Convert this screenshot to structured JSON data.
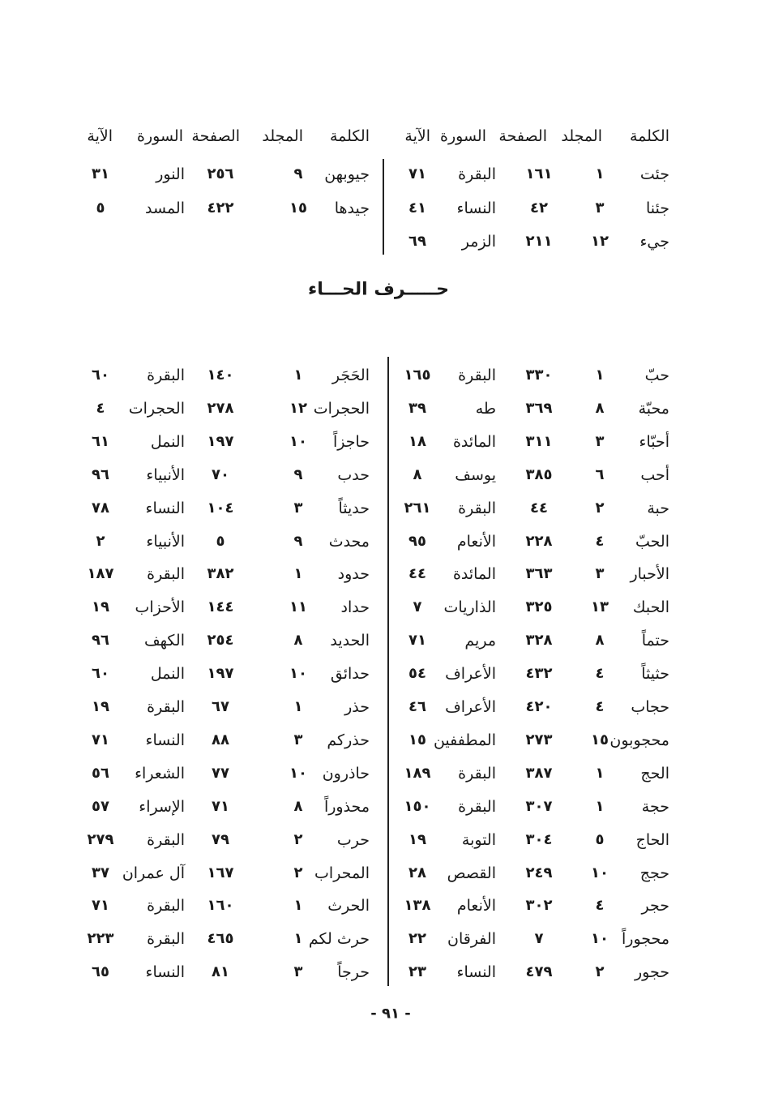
{
  "headers": {
    "right": [
      "الكلمة",
      "المجلد",
      "الصفحة",
      "السورة",
      "الآية"
    ],
    "left": [
      "الكلمة",
      "المجلد",
      "الصفحة",
      "السورة",
      "الآية"
    ]
  },
  "top_section": {
    "right_rows": [
      [
        "جئت",
        "١",
        "١٦١",
        "البقرة",
        "٧١"
      ],
      [
        "جئنا",
        "٣",
        "٤٢",
        "النساء",
        "٤١"
      ],
      [
        "جيء",
        "١٢",
        "٢١١",
        "الزمر",
        "٦٩"
      ]
    ],
    "left_rows": [
      [
        "جيوبهن",
        "٩",
        "٢٥٦",
        "النور",
        "٣١"
      ],
      [
        "جيدها",
        "١٥",
        "٤٢٢",
        "المسد",
        "٥"
      ]
    ]
  },
  "section_title": "حـــــرف الحـــاء",
  "main_section": {
    "right_rows": [
      [
        "حبّ",
        "١",
        "٣٣٠",
        "البقرة",
        "١٦٥"
      ],
      [
        "محبّة",
        "٨",
        "٣٦٩",
        "طه",
        "٣٩"
      ],
      [
        "أحبّاء",
        "٣",
        "٣١١",
        "المائدة",
        "١٨"
      ],
      [
        "أحب",
        "٦",
        "٣٨٥",
        "يوسف",
        "٨"
      ],
      [
        "حبة",
        "٢",
        "٤٤",
        "البقرة",
        "٢٦١"
      ],
      [
        "الحبّ",
        "٤",
        "٢٢٨",
        "الأنعام",
        "٩٥"
      ],
      [
        "الأحبار",
        "٣",
        "٣٦٣",
        "المائدة",
        "٤٤"
      ],
      [
        "الحبك",
        "١٣",
        "٣٢٥",
        "الذاريات",
        "٧"
      ],
      [
        "حتماً",
        "٨",
        "٣٢٨",
        "مريم",
        "٧١"
      ],
      [
        "حثيثاً",
        "٤",
        "٤٣٢",
        "الأعراف",
        "٥٤"
      ],
      [
        "حجاب",
        "٤",
        "٤٢٠",
        "الأعراف",
        "٤٦"
      ],
      [
        "محجوبون",
        "١٥",
        "٢٧٣",
        "المطففين",
        "١٥"
      ],
      [
        "الحج",
        "١",
        "٣٨٧",
        "البقرة",
        "١٨٩"
      ],
      [
        "حجة",
        "١",
        "٣٠٧",
        "البقرة",
        "١٥٠"
      ],
      [
        "الحاج",
        "٥",
        "٣٠٤",
        "التوبة",
        "١٩"
      ],
      [
        "حجج",
        "١٠",
        "٢٤٩",
        "القصص",
        "٢٨"
      ],
      [
        "حجر",
        "٤",
        "٣٠٢",
        "الأنعام",
        "١٣٨"
      ],
      [
        "محجوراً",
        "١٠",
        "٧",
        "الفرقان",
        "٢٢"
      ],
      [
        "حجور",
        "٢",
        "٤٧٩",
        "النساء",
        "٢٣"
      ]
    ],
    "left_rows": [
      [
        "الحَجَر",
        "١",
        "١٤٠",
        "البقرة",
        "٦٠"
      ],
      [
        "الحجرات",
        "١٢",
        "٢٧٨",
        "الحجرات",
        "٤"
      ],
      [
        "حاجزاً",
        "١٠",
        "١٩٧",
        "النمل",
        "٦١"
      ],
      [
        "حدب",
        "٩",
        "٧٠",
        "الأنبياء",
        "٩٦"
      ],
      [
        "حديثاً",
        "٣",
        "١٠٤",
        "النساء",
        "٧٨"
      ],
      [
        "محدث",
        "٩",
        "٥",
        "الأنبياء",
        "٢"
      ],
      [
        "حدود",
        "١",
        "٣٨٢",
        "البقرة",
        "١٨٧"
      ],
      [
        "حداد",
        "١١",
        "١٤٤",
        "الأحزاب",
        "١٩"
      ],
      [
        "الحديد",
        "٨",
        "٢٥٤",
        "الكهف",
        "٩٦"
      ],
      [
        "حدائق",
        "١٠",
        "١٩٧",
        "النمل",
        "٦٠"
      ],
      [
        "حذر",
        "١",
        "٦٧",
        "البقرة",
        "١٩"
      ],
      [
        "حذركم",
        "٣",
        "٨٨",
        "النساء",
        "٧١"
      ],
      [
        "حاذرون",
        "١٠",
        "٧٧",
        "الشعراء",
        "٥٦"
      ],
      [
        "محذوراً",
        "٨",
        "٧١",
        "الإسراء",
        "٥٧"
      ],
      [
        "حرب",
        "٢",
        "٧٩",
        "البقرة",
        "٢٧٩"
      ],
      [
        "المحراب",
        "٢",
        "١٦٧",
        "آل عمران",
        "٣٧"
      ],
      [
        "الحرث",
        "١",
        "١٦٠",
        "البقرة",
        "٧١"
      ],
      [
        "حرث لكم",
        "١",
        "٤٦٥",
        "البقرة",
        "٢٢٣"
      ],
      [
        "حرجاً",
        "٣",
        "٨١",
        "النساء",
        "٦٥"
      ]
    ]
  },
  "page_number": "- ٩١ -"
}
